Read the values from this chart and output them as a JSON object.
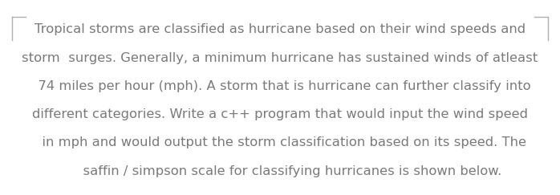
{
  "lines": [
    "Tropical storms are classified as hurricane based on their wind speeds and",
    "storm  surges. Generally, a minimum hurricane has sustained winds of atleast",
    "  74 miles per hour (mph). A storm that is hurricane can further classify into",
    "different categories. Write a c++ program that would input the wind speed",
    "  in mph and would output the storm classification based on its speed. The",
    "      saffin / simpson scale for classifying hurricanes is shown below."
  ],
  "background_color": "#ffffff",
  "text_color": "#7a7a7a",
  "border_color": "#b0b0b0",
  "font_size": 11.8,
  "fig_width": 6.98,
  "fig_height": 2.43
}
